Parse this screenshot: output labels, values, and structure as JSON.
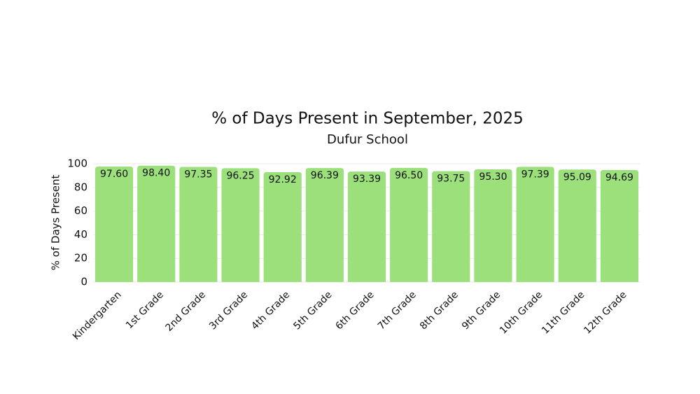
{
  "chart_data": {
    "type": "bar",
    "title": "% of Days Present in September, 2025",
    "subtitle": "Dufur School",
    "y_label": "% of Days Present",
    "categories": [
      "Kindergarten",
      "1st Grade",
      "2nd Grade",
      "3rd Grade",
      "4th Grade",
      "5th Grade",
      "6th Grade",
      "7th Grade",
      "8th Grade",
      "9th Grade",
      "10th Grade",
      "11th Grade",
      "12th Grade"
    ],
    "values": [
      97.6,
      98.4,
      97.35,
      96.25,
      92.92,
      96.39,
      93.39,
      96.5,
      93.75,
      95.3,
      97.39,
      95.09,
      94.69
    ],
    "value_labels": [
      "97.60",
      "98.40",
      "97.35",
      "96.25",
      "92.92",
      "96.39",
      "93.39",
      "96.50",
      "93.75",
      "95.30",
      "97.39",
      "95.09",
      "94.69"
    ],
    "color": "#9be07b",
    "ylim": [
      0,
      100
    ],
    "yticks": [
      0,
      20,
      40,
      60,
      80,
      100
    ],
    "grid": true
  }
}
